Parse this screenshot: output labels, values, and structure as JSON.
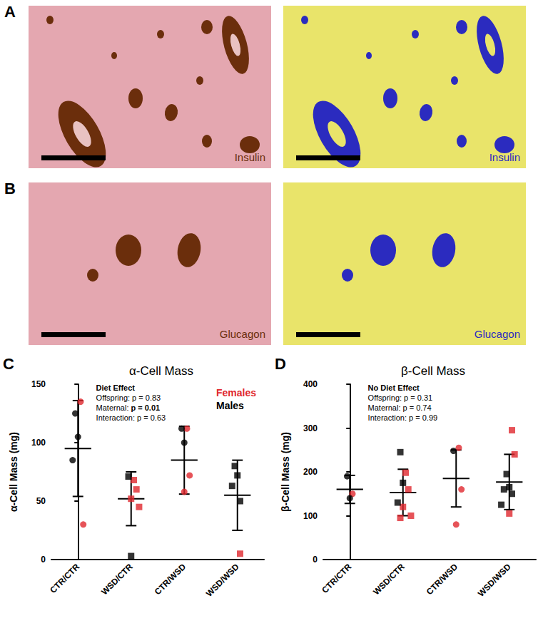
{
  "panels": [
    {
      "panel_label": "A",
      "stain": "Insulin"
    },
    {
      "panel_label": "B",
      "stain": "Glucagon"
    }
  ],
  "chart_data": [
    {
      "type": "scatter",
      "panel_label": "C",
      "title": "α-Cell Mass",
      "y_label": "α-Cell Mass (mg)",
      "categories": [
        "CTR/CTR",
        "WSD/CTR",
        "CTR/WSD",
        "WSD/WSD"
      ],
      "marker": [
        "circle",
        "square",
        "circle",
        "square"
      ],
      "series": [
        {
          "name": "Females",
          "color": "#e0282e",
          "values": [
            [
              135,
              30
            ],
            [
              68,
              60,
              52,
              45
            ],
            [
              112,
              72,
              58
            ],
            [
              5
            ]
          ]
        },
        {
          "name": "Males",
          "color": "#000000",
          "values": [
            [
              125,
              105,
              85
            ],
            [
              71,
              3
            ],
            [
              112,
              100
            ],
            [
              80,
              72,
              63,
              50
            ]
          ]
        }
      ],
      "means": [
        95,
        52,
        85,
        55
      ],
      "sd": [
        41,
        23,
        29,
        30
      ],
      "ylim": [
        0,
        150
      ],
      "yticks": [
        0,
        50,
        100,
        150
      ],
      "grid": false,
      "legend": "top-right",
      "annotation_title": "Diet Effect",
      "annotations": [
        {
          "text": "Offspring: ",
          "p_text": "p = 0.83",
          "p": 0.83
        },
        {
          "text": "Maternal: ",
          "p_text": "p = 0.01",
          "p": 0.01
        },
        {
          "text": "Interaction: ",
          "p_text": "p = 0.63",
          "p": 0.63
        }
      ]
    },
    {
      "type": "scatter",
      "panel_label": "D",
      "title": "β-Cell Mass",
      "y_label": "β-Cell Mass (mg)",
      "categories": [
        "CTR/CTR",
        "WSD/CTR",
        "CTR/WSD",
        "WSD/WSD"
      ],
      "marker": [
        "circle",
        "square",
        "circle",
        "square"
      ],
      "series": [
        {
          "name": "Females",
          "color": "#e0282e",
          "values": [
            [
              150
            ],
            [
              198,
              160,
              120,
              100,
              95
            ],
            [
              255,
              160,
              80
            ],
            [
              295,
              240,
              105
            ]
          ]
        },
        {
          "name": "Males",
          "color": "#000000",
          "values": [
            [
              190,
              140
            ],
            [
              245,
              175,
              130
            ],
            [
              248
            ],
            [
              195,
              165,
              160,
              150,
              125
            ]
          ]
        }
      ],
      "means": [
        160,
        153,
        185,
        177
      ],
      "sd": [
        32,
        53,
        65,
        63
      ],
      "ylim": [
        0,
        400
      ],
      "yticks": [
        0,
        100,
        200,
        300,
        400
      ],
      "grid": false,
      "annotation_title": "No Diet Effect",
      "annotations": [
        {
          "text": "Offspring: ",
          "p_text": "p = 0.31",
          "p": 0.31
        },
        {
          "text": "Maternal: ",
          "p_text": "p = 0.74",
          "p": 0.74
        },
        {
          "text": "Interaction: ",
          "p_text": "p = 0.99",
          "p": 0.99
        }
      ]
    }
  ]
}
